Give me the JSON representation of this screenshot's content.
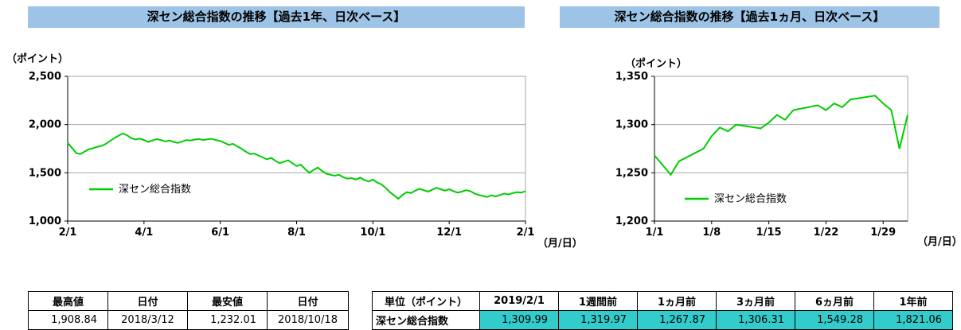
{
  "titles": {
    "left": "深セン総合指数の推移【過去1年、日次ベース】",
    "right": "深セン総合指数の推移【過去1ヵ月、日次ベース】"
  },
  "colors": {
    "title_bg": "#9DC3E6",
    "line": "#00CC00",
    "cell_highlight": "#33CCCC",
    "grid": "#A6A6A6",
    "axis": "#000000"
  },
  "chart_data": [
    {
      "type": "line",
      "title": "深セン総合指数の推移【過去1年、日次ベース】",
      "ylabel": "（ポイント）",
      "xlabel": "（月/日）",
      "legend": "深セン総合指数",
      "ylim": [
        1000,
        2500
      ],
      "ytick_values": [
        1000,
        1500,
        2000,
        2500
      ],
      "ytick_labels": [
        "1,000",
        "1,500",
        "2,000",
        "2,500"
      ],
      "xtick_pos": [
        0,
        0.1667,
        0.3333,
        0.5,
        0.6667,
        0.8333,
        1
      ],
      "xtick_labels": [
        "2/1",
        "4/1",
        "6/1",
        "8/1",
        "10/1",
        "12/1",
        "2/1"
      ],
      "values": [
        1810,
        1760,
        1705,
        1695,
        1720,
        1745,
        1755,
        1770,
        1780,
        1800,
        1830,
        1860,
        1885,
        1908,
        1890,
        1860,
        1845,
        1855,
        1840,
        1820,
        1835,
        1850,
        1840,
        1825,
        1835,
        1820,
        1810,
        1825,
        1840,
        1835,
        1845,
        1850,
        1840,
        1848,
        1852,
        1840,
        1830,
        1810,
        1790,
        1800,
        1775,
        1750,
        1720,
        1695,
        1700,
        1680,
        1660,
        1640,
        1655,
        1625,
        1600,
        1615,
        1630,
        1600,
        1570,
        1585,
        1540,
        1500,
        1530,
        1555,
        1520,
        1490,
        1480,
        1470,
        1480,
        1455,
        1440,
        1445,
        1430,
        1450,
        1425,
        1410,
        1430,
        1400,
        1380,
        1345,
        1300,
        1265,
        1232,
        1270,
        1300,
        1290,
        1315,
        1335,
        1320,
        1305,
        1325,
        1345,
        1330,
        1315,
        1330,
        1310,
        1295,
        1305,
        1320,
        1310,
        1285,
        1270,
        1260,
        1250,
        1268,
        1255,
        1270,
        1285,
        1275,
        1290,
        1300,
        1295,
        1310
      ]
    },
    {
      "type": "line",
      "title": "深セン総合指数の推移【過去1ヵ月、日次ベース】",
      "ylabel": "（ポイント）",
      "xlabel": "（月/日）",
      "legend": "深セン総合指数",
      "ylim": [
        1200,
        1350
      ],
      "ytick_values": [
        1200,
        1250,
        1300,
        1350
      ],
      "ytick_labels": [
        "1,200",
        "1,250",
        "1,300",
        "1,350"
      ],
      "xlim": [
        1,
        32
      ],
      "xtick_pos": [
        1,
        8,
        15,
        22,
        29
      ],
      "xtick_labels": [
        "1/1",
        "1/8",
        "1/15",
        "1/22",
        "1/29"
      ],
      "x": [
        1,
        2,
        3,
        4,
        7,
        8,
        9,
        10,
        11,
        14,
        15,
        16,
        17,
        18,
        21,
        22,
        23,
        24,
        25,
        28,
        29,
        30,
        31,
        32
      ],
      "values": [
        1268,
        1258,
        1248,
        1262,
        1275,
        1288,
        1297,
        1293,
        1300,
        1296,
        1302,
        1310,
        1305,
        1315,
        1320,
        1315,
        1322,
        1318,
        1326,
        1330,
        1322,
        1315,
        1275,
        1310
      ]
    }
  ],
  "minmax_table": {
    "headers": [
      "最高値",
      "日付",
      "最安値",
      "日付"
    ],
    "values": [
      "1,908.84",
      "2018/3/12",
      "1,232.01",
      "2018/10/18"
    ]
  },
  "summary_table": {
    "headers": [
      "単位（ポイント）",
      "2019/2/1",
      "1週間前",
      "1ヵ月前",
      "3ヵ月前",
      "6ヵ月前",
      "1年前"
    ],
    "row_label": "深セン総合指数",
    "values": [
      "1,309.99",
      "1,319.97",
      "1,267.87",
      "1,306.31",
      "1,549.28",
      "1,821.06"
    ]
  }
}
